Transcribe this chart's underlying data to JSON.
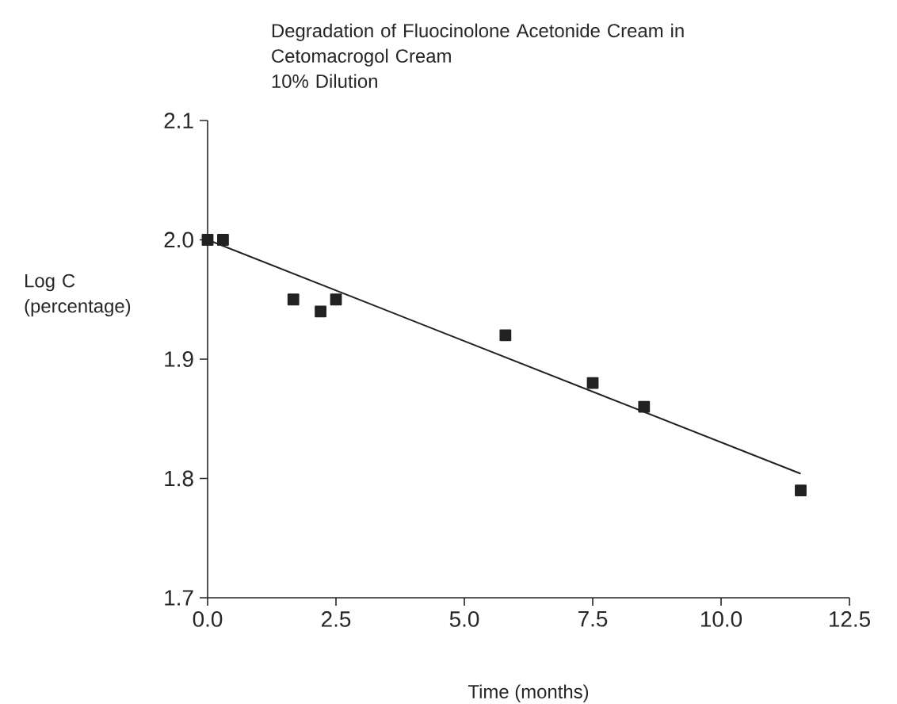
{
  "chart_data": {
    "type": "scatter",
    "title": "Degradation of Fluocinolone Acetonide Cream in Cetomacrogol Cream",
    "subtitle": "10% Dilution",
    "xlabel": "Time (months)",
    "ylabel": "Log C (percentage)",
    "series": [
      {
        "color": "#222222",
        "marker": "square",
        "x": [
          0,
          0.3,
          1.67,
          2.2,
          2.5,
          5.8,
          7.5,
          8.5,
          11.55
        ],
        "values": [
          2.0,
          2.0,
          1.95,
          1.94,
          1.95,
          1.92,
          1.88,
          1.86,
          1.79
        ]
      },
      {
        "type": "line",
        "color": "#222222",
        "marker": "none",
        "line_style": "solid",
        "x": [
          0,
          11.55
        ],
        "values": [
          2.0,
          1.804
        ]
      }
    ],
    "xlim": [
      0,
      12.5
    ],
    "ylim": [
      1.7,
      2.1
    ],
    "xticks": [
      {
        "value": 0,
        "label": "0.0"
      },
      2.5,
      {
        "value": 5,
        "label": "5.0"
      },
      7.5,
      {
        "value": 10,
        "label": "10.0"
      },
      12.5
    ],
    "yticks": [
      1.7,
      1.8,
      1.9,
      {
        "value": 2,
        "label": "2.0"
      },
      2.1
    ],
    "grid": false
  }
}
